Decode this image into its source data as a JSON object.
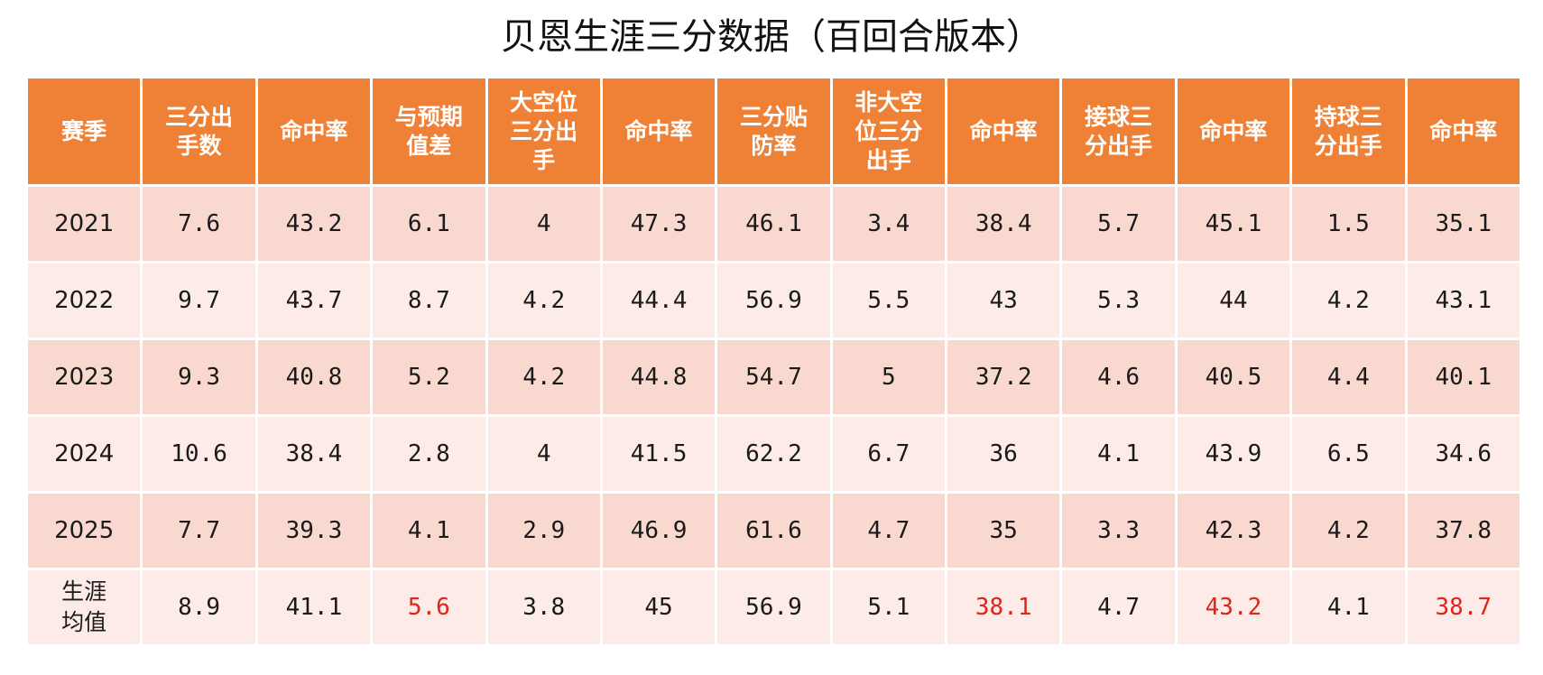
{
  "title": "贝恩生涯三分数据（百回合版本）",
  "colors": {
    "header_bg": "#ee8135",
    "row_odd_bg": "#f9d9cf",
    "row_even_bg": "#fcebe6",
    "highlight": "#e0241d"
  },
  "table": {
    "headers": [
      "赛季",
      "三分出\n手数",
      "命中率",
      "与预期\n值差",
      "大空位\n三分出\n手",
      "命中率",
      "三分贴\n防率",
      "非大空\n位三分\n出手",
      "命中率",
      "接球三\n分出手",
      "命中率",
      "持球三\n分出手",
      "命中率"
    ],
    "rows": [
      {
        "season": "2021",
        "values": [
          "7.6",
          "43.2",
          "6.1",
          "4",
          "47.3",
          "46.1",
          "3.4",
          "38.4",
          "5.7",
          "45.1",
          "1.5",
          "35.1"
        ]
      },
      {
        "season": "2022",
        "values": [
          "9.7",
          "43.7",
          "8.7",
          "4.2",
          "44.4",
          "56.9",
          "5.5",
          "43",
          "5.3",
          "44",
          "4.2",
          "43.1"
        ]
      },
      {
        "season": "2023",
        "values": [
          "9.3",
          "40.8",
          "5.2",
          "4.2",
          "44.8",
          "54.7",
          "5",
          "37.2",
          "4.6",
          "40.5",
          "4.4",
          "40.1"
        ]
      },
      {
        "season": "2024",
        "values": [
          "10.6",
          "38.4",
          "2.8",
          "4",
          "41.5",
          "62.2",
          "6.7",
          "36",
          "4.1",
          "43.9",
          "6.5",
          "34.6"
        ]
      },
      {
        "season": "2025",
        "values": [
          "7.7",
          "39.3",
          "4.1",
          "2.9",
          "46.9",
          "61.6",
          "4.7",
          "35",
          "3.3",
          "42.3",
          "4.2",
          "37.8"
        ]
      },
      {
        "season": "生涯\n均值",
        "values": [
          "8.9",
          "41.1",
          "5.6",
          "3.8",
          "45",
          "56.9",
          "5.1",
          "38.1",
          "4.7",
          "43.2",
          "4.1",
          "38.7"
        ],
        "highlight_columns": [
          2,
          7,
          9,
          11
        ]
      }
    ]
  }
}
